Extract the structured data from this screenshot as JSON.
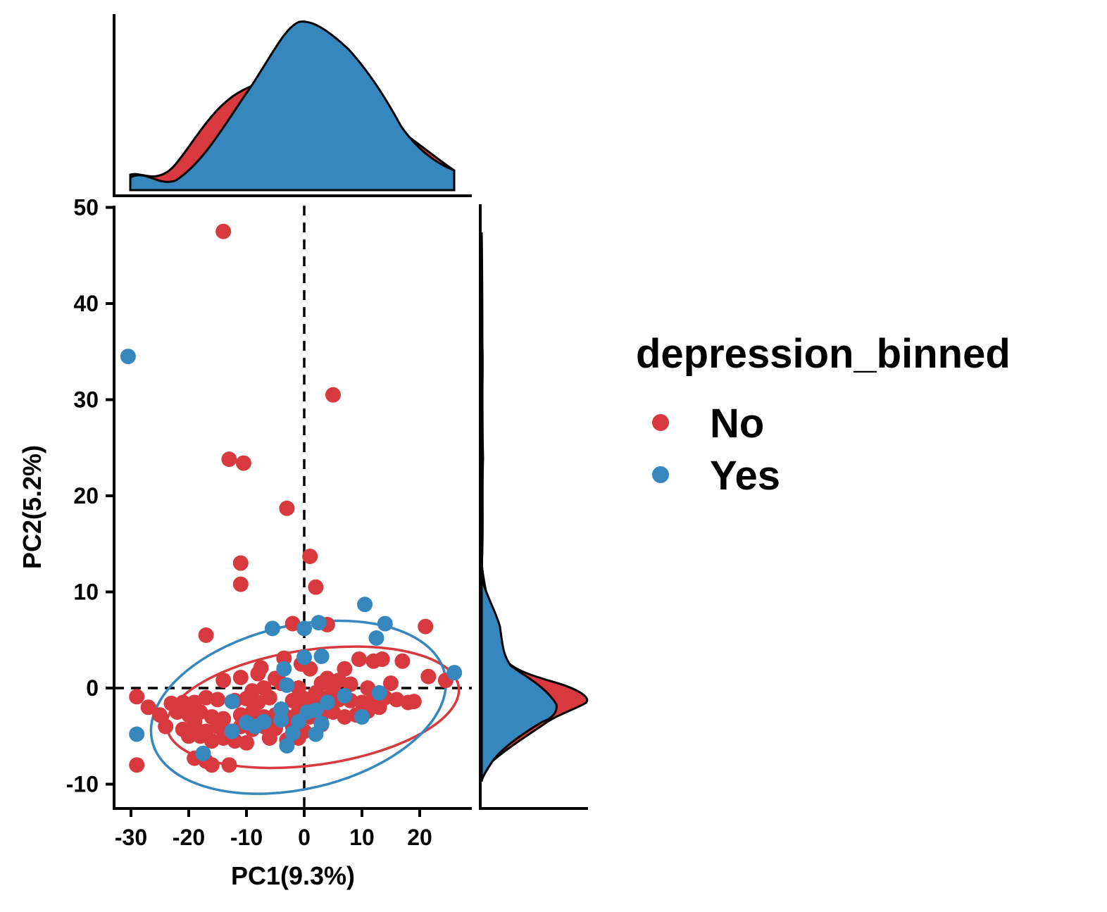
{
  "chart_data": {
    "type": "scatter",
    "title": "",
    "xlabel": "PC1(9.3%)",
    "ylabel": "PC2(5.2%)",
    "xlim": [
      -33,
      29
    ],
    "ylim": [
      -12.5,
      50
    ],
    "x_ticks": [
      -30,
      -20,
      -10,
      0,
      10,
      20
    ],
    "y_ticks": [
      -10,
      0,
      10,
      20,
      30,
      40,
      50
    ],
    "x_tick_labels": [
      "-30",
      "-20",
      "-10",
      "0",
      "10",
      "20"
    ],
    "y_tick_labels": [
      "-10",
      "0",
      "10",
      "20",
      "30",
      "40",
      "50"
    ],
    "reference_lines": {
      "x": 0,
      "y": 0,
      "style": "dashed"
    },
    "grid": false,
    "legend": {
      "title": "depression_binned",
      "placement": "right",
      "entries": [
        "No",
        "Yes"
      ]
    },
    "marginal_density": {
      "top": true,
      "right": true
    },
    "series": [
      {
        "name": "No",
        "color": "#d7393f",
        "ellipse": {
          "cx": 1.5,
          "cy": -2.0,
          "rx": 25.5,
          "ry": 6.0,
          "angle_deg": 8
        },
        "points": [
          [
            -14,
            47.5
          ],
          [
            5,
            30.5
          ],
          [
            -13,
            23.8
          ],
          [
            -10.5,
            23.4
          ],
          [
            -3,
            18.7
          ],
          [
            1,
            13.7
          ],
          [
            -11,
            13
          ],
          [
            -11,
            10.8
          ],
          [
            2,
            10.5
          ],
          [
            -17,
            5.5
          ],
          [
            -2,
            6.7
          ],
          [
            4,
            6.6
          ],
          [
            21,
            6.4
          ],
          [
            17,
            2.8
          ],
          [
            12,
            2.8
          ],
          [
            13.5,
            3
          ],
          [
            9.5,
            3
          ],
          [
            7,
            2
          ],
          [
            -3.5,
            3.1
          ],
          [
            -7.5,
            2.1
          ],
          [
            -0.5,
            2.5
          ],
          [
            1,
            2
          ],
          [
            4,
            1
          ],
          [
            -14,
            0.8
          ],
          [
            -11,
            1.1
          ],
          [
            -8,
            1.5
          ],
          [
            -5,
            1
          ],
          [
            21.5,
            1.2
          ],
          [
            24.5,
            0.8
          ],
          [
            -29,
            -0.9
          ],
          [
            -23,
            -1.6
          ],
          [
            -21,
            -1.5
          ],
          [
            -19,
            -1.5
          ],
          [
            -17,
            -1
          ],
          [
            -15,
            -1.2
          ],
          [
            -12,
            -1.3
          ],
          [
            -10,
            -1.1
          ],
          [
            -8,
            -1.5
          ],
          [
            -6,
            -1
          ],
          [
            -2,
            -1.3
          ],
          [
            0,
            -1.1
          ],
          [
            2,
            -1.5
          ],
          [
            4,
            -1
          ],
          [
            6,
            -1.2
          ],
          [
            8,
            -1.3
          ],
          [
            10,
            -1.5
          ],
          [
            12,
            -1.1
          ],
          [
            14,
            -1
          ],
          [
            16,
            -1.2
          ],
          [
            18,
            -1.5
          ],
          [
            19,
            -1.4
          ],
          [
            15,
            0.5
          ],
          [
            11,
            0
          ],
          [
            8,
            0.4
          ],
          [
            5,
            0
          ],
          [
            3,
            0.5
          ],
          [
            -1,
            0
          ],
          [
            -4,
            0.5
          ],
          [
            -7,
            0
          ],
          [
            -9,
            -0.3
          ],
          [
            -25,
            -2.8
          ],
          [
            -22,
            -2.5
          ],
          [
            -20,
            -2.8
          ],
          [
            -18,
            -2.5
          ],
          [
            -16,
            -3
          ],
          [
            -14,
            -3.2
          ],
          [
            -11,
            -2.8
          ],
          [
            -9,
            -2.5
          ],
          [
            -7,
            -3
          ],
          [
            -5,
            -2.8
          ],
          [
            -3,
            -3
          ],
          [
            -1,
            -2.5
          ],
          [
            1,
            -3
          ],
          [
            3,
            -2.8
          ],
          [
            5,
            -2.5
          ],
          [
            7,
            -3
          ],
          [
            9,
            -2.8
          ],
          [
            11,
            -2.4
          ],
          [
            13,
            -2
          ],
          [
            -24,
            -4
          ],
          [
            -21,
            -4.3
          ],
          [
            -19,
            -4
          ],
          [
            -17,
            -4.5
          ],
          [
            -15,
            -4
          ],
          [
            -13,
            -4.5
          ],
          [
            -11,
            -4
          ],
          [
            -9,
            -4.3
          ],
          [
            -7,
            -4
          ],
          [
            -5,
            -4.2
          ],
          [
            -2,
            -4
          ],
          [
            0,
            -4.5
          ],
          [
            3,
            -3.8
          ],
          [
            -20,
            -5
          ],
          [
            -18,
            -5
          ],
          [
            -16,
            -5.5
          ],
          [
            -14,
            -5.2
          ],
          [
            -12,
            -5.5
          ],
          [
            -10,
            -5.7
          ],
          [
            -6,
            -5.2
          ],
          [
            -3,
            -5.4
          ],
          [
            -1,
            -5.2
          ],
          [
            -19,
            -7.3
          ],
          [
            -17,
            -7.6
          ],
          [
            -16,
            -8
          ],
          [
            -13,
            -8
          ],
          [
            -29,
            -8
          ],
          [
            -27,
            -2
          ],
          [
            -19,
            -3.5
          ],
          [
            2,
            -0.5
          ],
          [
            6,
            0.8
          ]
        ]
      },
      {
        "name": "Yes",
        "color": "#3687be",
        "ellipse": {
          "cx": -1.0,
          "cy": -2.0,
          "rx": 26.0,
          "ry": 8.5,
          "angle_deg": 13
        },
        "points": [
          [
            -30.5,
            34.5
          ],
          [
            10.5,
            8.7
          ],
          [
            14,
            6.7
          ],
          [
            2.5,
            6.8
          ],
          [
            -5.5,
            6.2
          ],
          [
            12.5,
            5.2
          ],
          [
            0,
            6.2
          ],
          [
            3,
            3.3
          ],
          [
            0,
            3.2
          ],
          [
            -3.5,
            2
          ],
          [
            -3,
            0.3
          ],
          [
            26,
            1.6
          ],
          [
            -12.5,
            -1.4
          ],
          [
            -4,
            -2.2
          ],
          [
            0.5,
            -2.5
          ],
          [
            2,
            -2.3
          ],
          [
            7,
            -0.8
          ],
          [
            13,
            -0.5
          ],
          [
            -10,
            -3.6
          ],
          [
            -7,
            -3.5
          ],
          [
            -4,
            -3.3
          ],
          [
            -1,
            -3.5
          ],
          [
            3,
            -3.7
          ],
          [
            -2,
            -4.7
          ],
          [
            -3,
            -6
          ],
          [
            -8.5,
            -4
          ],
          [
            -12.5,
            -4.5
          ],
          [
            -17.5,
            -6.8
          ],
          [
            -29,
            -4.8
          ],
          [
            2,
            -4.8
          ],
          [
            10,
            -3
          ],
          [
            4,
            -1.5
          ]
        ]
      }
    ]
  }
}
